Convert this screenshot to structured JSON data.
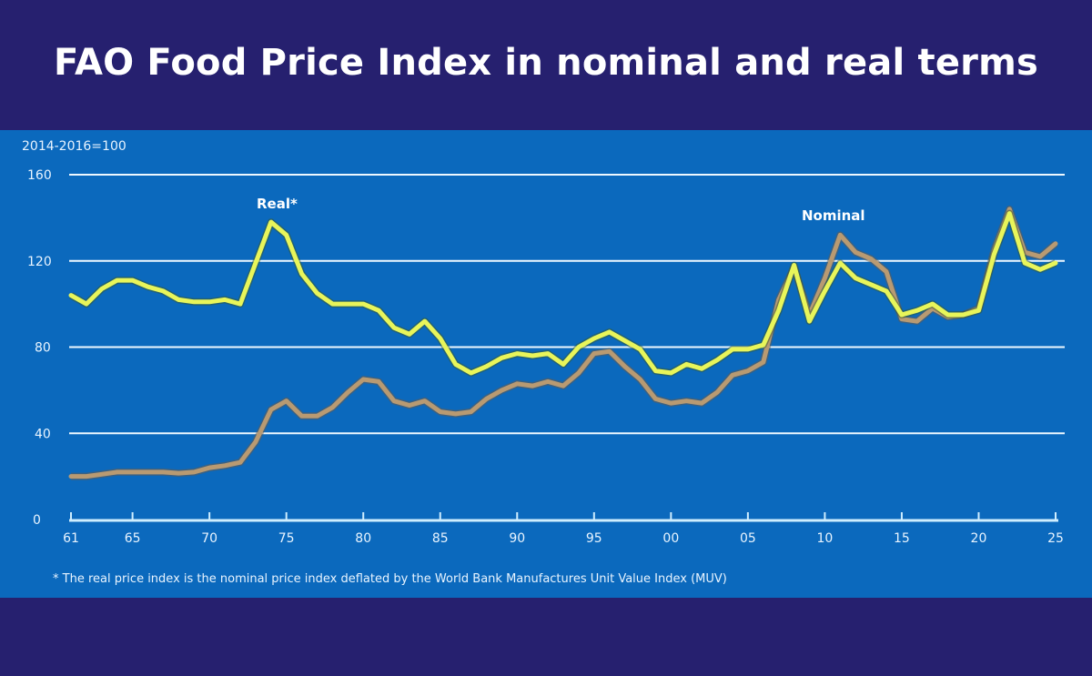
{
  "title": "FAO Food Price Index in nominal and real terms",
  "chart_data": {
    "type": "line",
    "title": "FAO Food Price Index in nominal and real terms",
    "ylabel": "2014-2016=100",
    "xlabel": "",
    "ylim": [
      0,
      160
    ],
    "yticks": [
      0,
      40,
      80,
      120,
      160
    ],
    "xlim": [
      1961,
      2025
    ],
    "xticks": [
      1961,
      1965,
      1970,
      1975,
      1980,
      1985,
      1990,
      1995,
      2000,
      2005,
      2010,
      2015,
      2020,
      2025
    ],
    "xtick_labels": [
      "61",
      "65",
      "70",
      "75",
      "80",
      "85",
      "90",
      "95",
      "00",
      "05",
      "10",
      "15",
      "20",
      "25"
    ],
    "grid": "horizontal",
    "x": [
      1961,
      1962,
      1963,
      1964,
      1965,
      1966,
      1967,
      1968,
      1969,
      1970,
      1971,
      1972,
      1973,
      1974,
      1975,
      1976,
      1977,
      1978,
      1979,
      1980,
      1981,
      1982,
      1983,
      1984,
      1985,
      1986,
      1987,
      1988,
      1989,
      1990,
      1991,
      1992,
      1993,
      1994,
      1995,
      1996,
      1997,
      1998,
      1999,
      2000,
      2001,
      2002,
      2003,
      2004,
      2005,
      2006,
      2007,
      2008,
      2009,
      2010,
      2011,
      2012,
      2013,
      2014,
      2015,
      2016,
      2017,
      2018,
      2019,
      2020,
      2021,
      2022,
      2023,
      2024,
      2025
    ],
    "series": [
      {
        "name": "Real*",
        "color": "#e8f55a",
        "values": [
          104,
          100,
          107,
          111,
          111,
          108,
          106,
          102,
          101,
          101,
          102,
          100,
          119,
          138,
          132,
          114,
          105,
          100,
          100,
          100,
          97,
          89,
          86,
          92,
          84,
          72,
          68,
          71,
          75,
          77,
          76,
          77,
          72,
          80,
          84,
          87,
          83,
          79,
          69,
          68,
          72,
          70,
          74,
          79,
          79,
          81,
          97,
          118,
          92,
          106,
          119,
          112,
          109,
          106,
          95,
          97,
          100,
          95,
          95,
          97,
          123,
          142,
          119,
          116,
          119
        ]
      },
      {
        "name": "Nominal",
        "color": "#b89a72",
        "values": [
          20,
          20,
          21,
          22,
          22,
          22,
          22,
          21.5,
          22,
          24,
          25,
          26.5,
          36,
          51,
          55,
          48,
          48,
          52,
          59,
          65,
          64,
          55,
          53,
          55,
          50,
          49,
          50,
          56,
          60,
          63,
          62,
          64,
          62,
          68,
          77,
          78,
          71,
          65,
          56,
          54,
          55,
          54,
          59,
          67,
          69,
          73,
          102,
          117,
          95,
          112,
          132,
          124,
          121,
          115,
          93,
          92,
          98,
          94,
          95,
          98,
          125,
          144,
          124,
          122,
          128
        ]
      }
    ],
    "annotations": [
      "Real*",
      "Nominal"
    ],
    "footnote": "* The real price index is the nominal price index deflated by the World Bank Manufactures Unit Value Index (MUV)"
  }
}
